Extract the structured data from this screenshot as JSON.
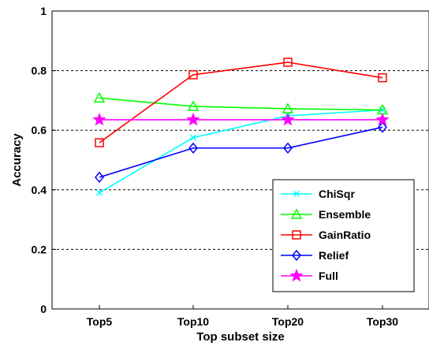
{
  "chart_data": {
    "type": "line",
    "title": "",
    "xlabel": "Top subset size",
    "ylabel": "Accuracy",
    "categories": [
      "Top5",
      "Top10",
      "Top20",
      "Top30"
    ],
    "ylim": [
      0,
      1
    ],
    "yticks": [
      0,
      0.2,
      0.4,
      0.6,
      0.8,
      1
    ],
    "ytick_labels": [
      "0",
      "0.2",
      "0.4",
      "0.6",
      "0.8",
      "1"
    ],
    "grid": "horizontal dashed at y ticks",
    "legend_position": "lower-right",
    "series": [
      {
        "name": "ChiSqr",
        "marker": "x",
        "color": "#00ffff",
        "values": [
          0.39,
          0.575,
          0.648,
          0.668
        ]
      },
      {
        "name": "Ensemble",
        "marker": "triangle",
        "color": "#00ff00",
        "values": [
          0.708,
          0.68,
          0.672,
          0.668
        ]
      },
      {
        "name": "GainRatio",
        "marker": "square",
        "color": "#ff0000",
        "values": [
          0.558,
          0.786,
          0.828,
          0.776
        ]
      },
      {
        "name": "Relief",
        "marker": "diamond",
        "color": "#0000ff",
        "values": [
          0.442,
          0.54,
          0.54,
          0.61
        ]
      },
      {
        "name": "Full",
        "marker": "star",
        "color": "#ff00ff",
        "values": [
          0.635,
          0.635,
          0.635,
          0.635
        ]
      }
    ]
  }
}
